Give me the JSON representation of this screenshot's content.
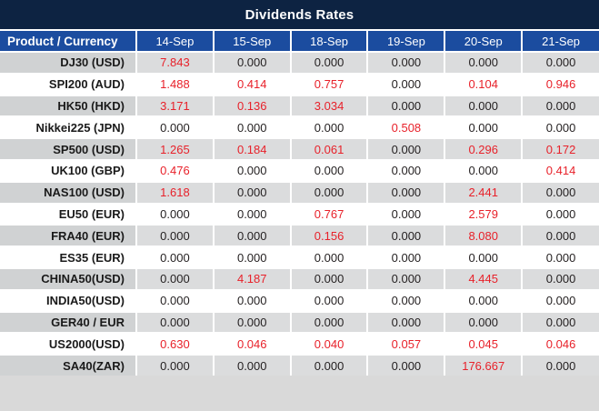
{
  "title": "Dividends Rates",
  "colors": {
    "title_bar_bg": "#0d2342",
    "header_row_bg": "#1b4c9f",
    "header_text": "#ffffff",
    "row_gray_values": "#dbdcdd",
    "row_gray_label": "#d0d2d3",
    "row_white": "#ffffff",
    "value_zero_text": "#231f20",
    "value_nonzero_text": "#e8212a",
    "cell_border": "#ffffff",
    "bottom_strip": "#d9d9d9"
  },
  "table": {
    "product_header": "Product / Currency",
    "date_headers": [
      "14-Sep",
      "15-Sep",
      "18-Sep",
      "19-Sep",
      "20-Sep",
      "21-Sep"
    ],
    "rows": [
      {
        "product": "DJ30 (USD)",
        "values": [
          "7.843",
          "0.000",
          "0.000",
          "0.000",
          "0.000",
          "0.000"
        ]
      },
      {
        "product": "SPI200 (AUD)",
        "values": [
          "1.488",
          "0.414",
          "0.757",
          "0.000",
          "0.104",
          "0.946"
        ]
      },
      {
        "product": "HK50 (HKD)",
        "values": [
          "3.171",
          "0.136",
          "3.034",
          "0.000",
          "0.000",
          "0.000"
        ]
      },
      {
        "product": "Nikkei225 (JPN)",
        "values": [
          "0.000",
          "0.000",
          "0.000",
          "0.508",
          "0.000",
          "0.000"
        ]
      },
      {
        "product": "SP500 (USD)",
        "values": [
          "1.265",
          "0.184",
          "0.061",
          "0.000",
          "0.296",
          "0.172"
        ]
      },
      {
        "product": "UK100 (GBP)",
        "values": [
          "0.476",
          "0.000",
          "0.000",
          "0.000",
          "0.000",
          "0.414"
        ]
      },
      {
        "product": "NAS100 (USD)",
        "values": [
          "1.618",
          "0.000",
          "0.000",
          "0.000",
          "2.441",
          "0.000"
        ]
      },
      {
        "product": "EU50 (EUR)",
        "values": [
          "0.000",
          "0.000",
          "0.767",
          "0.000",
          "2.579",
          "0.000"
        ]
      },
      {
        "product": "FRA40 (EUR)",
        "values": [
          "0.000",
          "0.000",
          "0.156",
          "0.000",
          "8.080",
          "0.000"
        ]
      },
      {
        "product": "ES35 (EUR)",
        "values": [
          "0.000",
          "0.000",
          "0.000",
          "0.000",
          "0.000",
          "0.000"
        ]
      },
      {
        "product": "CHINA50(USD)",
        "values": [
          "0.000",
          "4.187",
          "0.000",
          "0.000",
          "4.445",
          "0.000"
        ]
      },
      {
        "product": "INDIA50(USD)",
        "values": [
          "0.000",
          "0.000",
          "0.000",
          "0.000",
          "0.000",
          "0.000"
        ]
      },
      {
        "product": "GER40 / EUR",
        "values": [
          "0.000",
          "0.000",
          "0.000",
          "0.000",
          "0.000",
          "0.000"
        ]
      },
      {
        "product": "US2000(USD)",
        "values": [
          "0.630",
          "0.046",
          "0.040",
          "0.057",
          "0.045",
          "0.046"
        ]
      },
      {
        "product": "SA40(ZAR)",
        "values": [
          "0.000",
          "0.000",
          "0.000",
          "0.000",
          "176.667",
          "0.000"
        ]
      }
    ]
  }
}
